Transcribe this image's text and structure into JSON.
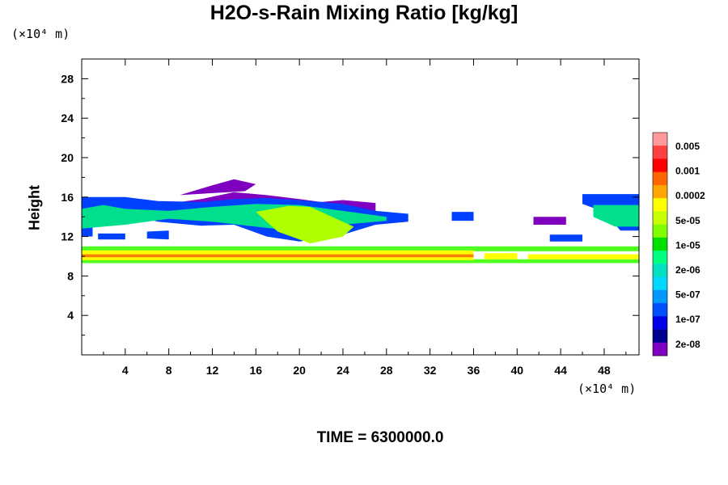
{
  "title": "H2O-s-Rain Mixing Ratio [kg/kg]",
  "y_unit_label": "(×10⁴ m)",
  "x_unit_label": "(×10⁴ m)",
  "time_label": "TIME = 6300000.0",
  "chart_data": {
    "type": "heatmap",
    "title": "H2O-s-Rain Mixing Ratio [kg/kg]",
    "ylabel": "Height",
    "xlabel": "",
    "x_unit": "(×10⁴ m)",
    "y_unit": "(×10⁴ m)",
    "xlim": [
      0,
      51.2
    ],
    "ylim": [
      0,
      30
    ],
    "x_ticks": [
      4,
      8,
      12,
      16,
      20,
      24,
      28,
      32,
      36,
      40,
      44,
      48
    ],
    "y_ticks": [
      4,
      8,
      12,
      16,
      20,
      24,
      28
    ],
    "colorbar": {
      "labels": [
        "0.005",
        "0.001",
        "0.0002",
        "5e-05",
        "1e-05",
        "2e-06",
        "5e-07",
        "1e-07",
        "2e-08"
      ],
      "colors": [
        "#ff9a9a",
        "#ff4040",
        "#ff0000",
        "#ff6600",
        "#ffa500",
        "#ffff00",
        "#c8ff00",
        "#7fff00",
        "#00e000",
        "#00ff80",
        "#00e0c0",
        "#00d8ff",
        "#0098ff",
        "#0050ff",
        "#0000e6",
        "#000090",
        "#8000c0"
      ]
    },
    "layers": [
      {
        "level": "2e-08",
        "color": "#8000c0",
        "polys": [
          [
            [
              7,
              15.2
            ],
            [
              11,
              15.8
            ],
            [
              14,
              16.5
            ],
            [
              17,
              16.2
            ],
            [
              20,
              15.8
            ],
            [
              22,
              15.5
            ],
            [
              24,
              15.7
            ],
            [
              27,
              15.4
            ],
            [
              27,
              14.6
            ],
            [
              24,
              14.4
            ],
            [
              20,
              14.6
            ],
            [
              16,
              14.8
            ],
            [
              12,
              14.9
            ],
            [
              7,
              14.8
            ]
          ],
          [
            [
              9,
              16.2
            ],
            [
              12,
              17.2
            ],
            [
              14,
              17.8
            ],
            [
              16,
              17.3
            ],
            [
              15,
              16.6
            ],
            [
              12,
              16.4
            ]
          ],
          [
            [
              41.5,
              14
            ],
            [
              44.5,
              14
            ],
            [
              44.5,
              13.2
            ],
            [
              41.5,
              13.2
            ]
          ]
        ]
      },
      {
        "level": "1e-07",
        "color": "#0040ff",
        "polys": [
          [
            [
              0,
              16
            ],
            [
              4,
              16
            ],
            [
              7,
              15.6
            ],
            [
              11,
              15.5
            ],
            [
              14,
              15.8
            ],
            [
              17,
              15.9
            ],
            [
              20,
              15.7
            ],
            [
              24,
              15.3
            ],
            [
              27,
              14.6
            ],
            [
              30,
              14.3
            ],
            [
              30,
              13.5
            ],
            [
              27,
              13.2
            ],
            [
              24,
              12.2
            ],
            [
              20,
              11.5
            ],
            [
              17,
              12
            ],
            [
              14,
              13.2
            ],
            [
              11,
              13.1
            ],
            [
              7,
              13.5
            ],
            [
              4,
              14.3
            ],
            [
              0,
              14
            ]
          ],
          [
            [
              46,
              16.3
            ],
            [
              51.2,
              16.3
            ],
            [
              51.2,
              12.6
            ],
            [
              49.5,
              12.6
            ],
            [
              48,
              14.5
            ],
            [
              46,
              15.3
            ]
          ],
          [
            [
              34,
              14.5
            ],
            [
              36,
              14.5
            ],
            [
              36,
              13.6
            ],
            [
              34,
              13.6
            ]
          ],
          [
            [
              0,
              13
            ],
            [
              1,
              13
            ],
            [
              1,
              12
            ],
            [
              0,
              12
            ]
          ],
          [
            [
              43,
              12.2
            ],
            [
              46,
              12.2
            ],
            [
              46,
              11.5
            ],
            [
              43,
              11.5
            ]
          ],
          [
            [
              1.5,
              12.3
            ],
            [
              4,
              12.3
            ],
            [
              4,
              11.7
            ],
            [
              1.5,
              11.7
            ]
          ],
          [
            [
              6,
              12.5
            ],
            [
              8,
              12.6
            ],
            [
              8,
              11.7
            ],
            [
              6,
              11.8
            ]
          ]
        ]
      },
      {
        "level": "2e-06",
        "color": "#00e08c",
        "polys": [
          [
            [
              0,
              14.8
            ],
            [
              2,
              15.2
            ],
            [
              4,
              14.8
            ],
            [
              8,
              14.6
            ],
            [
              12,
              15
            ],
            [
              16,
              15.3
            ],
            [
              20,
              15.2
            ],
            [
              24,
              14.6
            ],
            [
              28,
              14
            ],
            [
              28,
              13.6
            ],
            [
              24,
              13.2
            ],
            [
              20,
              12.5
            ],
            [
              16,
              13
            ],
            [
              12,
              13.5
            ],
            [
              8,
              13.8
            ],
            [
              4,
              13.2
            ],
            [
              0,
              12.8
            ]
          ],
          [
            [
              47,
              15.2
            ],
            [
              51.2,
              15.2
            ],
            [
              51.2,
              13
            ],
            [
              49,
              13
            ],
            [
              47,
              14
            ]
          ]
        ]
      },
      {
        "level": "5e-05",
        "color": "#b0ff00",
        "polys": [
          [
            [
              16,
              14.5
            ],
            [
              19,
              15.1
            ],
            [
              21,
              15
            ],
            [
              23,
              14
            ],
            [
              25,
              13
            ],
            [
              24,
              12
            ],
            [
              21,
              11.3
            ],
            [
              18,
              12.5
            ]
          ]
        ]
      },
      {
        "level": "1e-05",
        "color": "#50ff20",
        "polys": [
          [
            [
              0,
              11
            ],
            [
              51.2,
              11
            ],
            [
              51.2,
              10.5
            ],
            [
              0,
              10.5
            ]
          ],
          [
            [
              0,
              9.7
            ],
            [
              51.2,
              9.7
            ],
            [
              51.2,
              9.3
            ],
            [
              0,
              9.3
            ]
          ]
        ]
      },
      {
        "level": "0.0002",
        "color": "#ffff00",
        "polys": [
          [
            [
              0,
              10.6
            ],
            [
              36,
              10.6
            ],
            [
              36,
              9.6
            ],
            [
              0,
              9.6
            ]
          ],
          [
            [
              37,
              10.3
            ],
            [
              40,
              10.3
            ],
            [
              40,
              9.7
            ],
            [
              37,
              9.7
            ]
          ],
          [
            [
              41,
              10.2
            ],
            [
              51.2,
              10.2
            ],
            [
              51.2,
              9.7
            ],
            [
              41,
              9.7
            ]
          ]
        ]
      },
      {
        "level": "0.001",
        "color": "#ff8000",
        "polys": [
          [
            [
              0,
              10.2
            ],
            [
              36,
              10.2
            ],
            [
              36,
              9.9
            ],
            [
              0,
              9.9
            ]
          ]
        ]
      }
    ]
  }
}
